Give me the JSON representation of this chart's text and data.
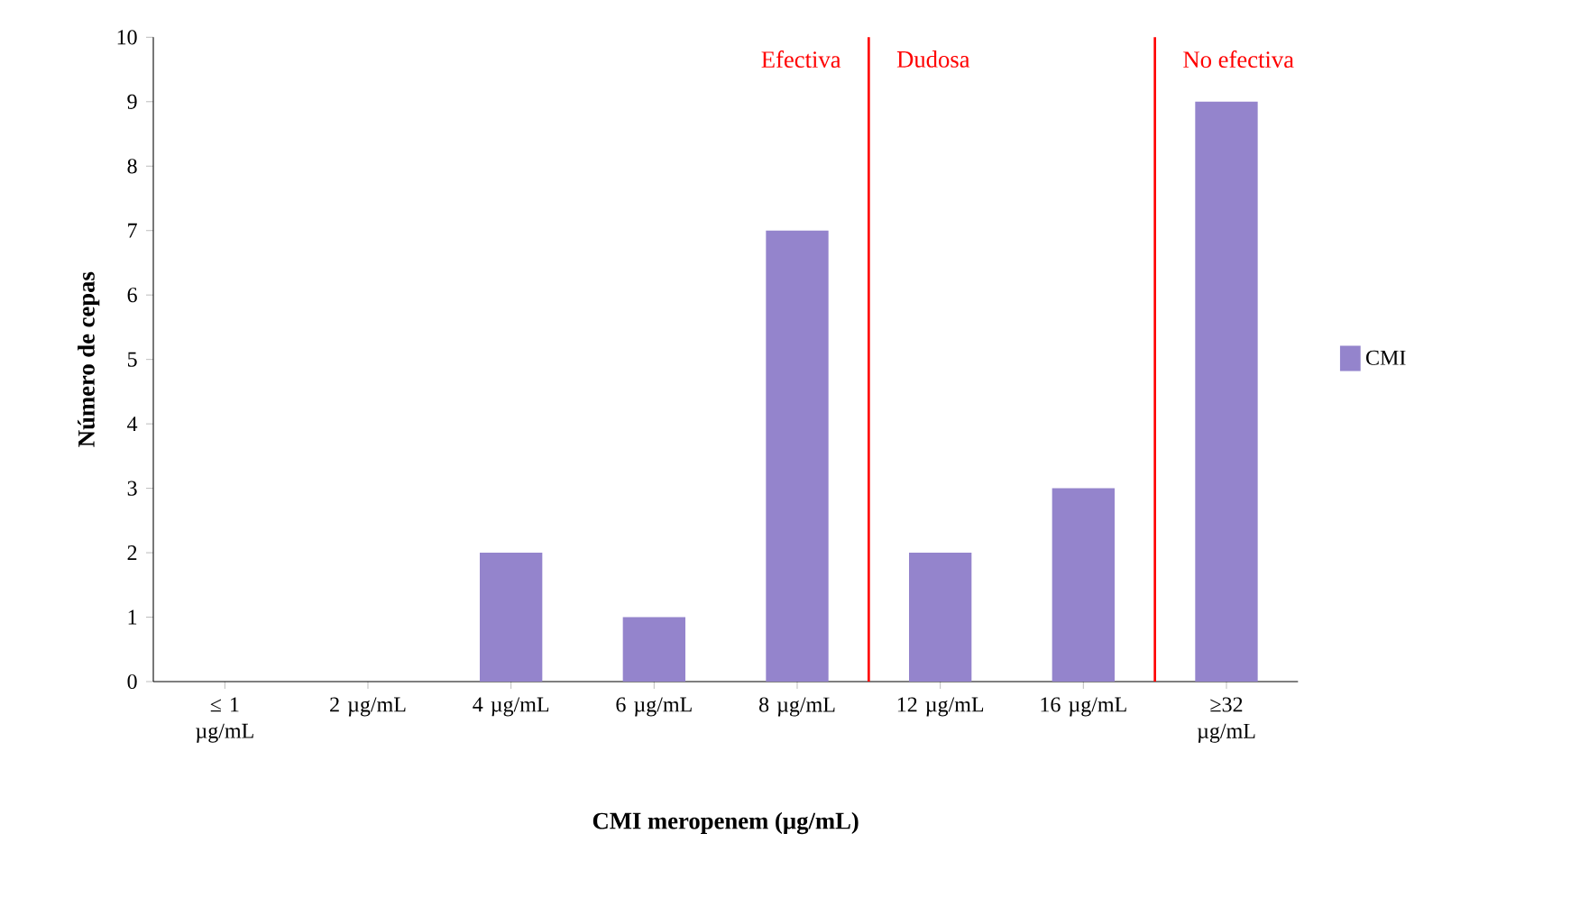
{
  "chart_data": {
    "type": "bar",
    "xlabel": "CMI meropenem (µg/mL)",
    "ylabel": "Número de cepas",
    "categories": [
      "≤ 1 µg/mL",
      "2 µg/mL",
      "4 µg/mL",
      "6 µg/mL",
      "8 µg/mL",
      "12 µg/mL",
      "16 µg/mL",
      "≥32 µg/mL"
    ],
    "series": [
      {
        "name": "CMI",
        "color": "#9484cc",
        "values": [
          0,
          0,
          2,
          1,
          7,
          2,
          3,
          9
        ]
      }
    ],
    "ylim": [
      0,
      10
    ],
    "yticks": [
      0,
      1,
      2,
      3,
      4,
      5,
      6,
      7,
      8,
      9,
      10
    ],
    "annotations": [
      "Efectiva",
      "Dudosa",
      "No efectiva"
    ],
    "legend": "right",
    "grid": false
  }
}
